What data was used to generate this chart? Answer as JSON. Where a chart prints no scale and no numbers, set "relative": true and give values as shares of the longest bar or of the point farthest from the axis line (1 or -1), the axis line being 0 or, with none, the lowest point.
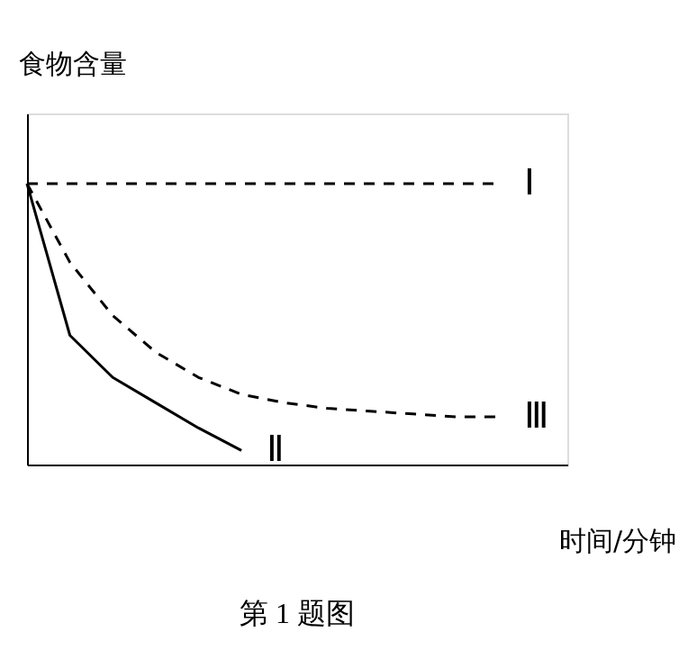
{
  "chart_data": {
    "type": "line",
    "relative": true,
    "ylabel": "食物含量",
    "xlabel": "时间/分钟",
    "annotations": [
      "第 1 题图"
    ],
    "tick_labels": false,
    "marker": "none",
    "categories": [
      null,
      null,
      null,
      null,
      null,
      null,
      null,
      null,
      null,
      null,
      null,
      null
    ],
    "series": [
      {
        "name": "Ⅰ",
        "color": "#000000",
        "line_style": "dashed",
        "values": [
          1,
          1,
          1,
          1,
          1,
          1,
          1,
          1,
          1,
          1,
          1,
          1
        ]
      },
      {
        "name": "Ⅱ",
        "color": "#000000",
        "line_style": "solid",
        "values": [
          1,
          0.46,
          0.31,
          0.22,
          0.13,
          0.05,
          null,
          null,
          null,
          null,
          null,
          null
        ]
      },
      {
        "name": "Ⅲ",
        "color": "#000000",
        "line_style": "dashed",
        "values": [
          1,
          0.72,
          0.53,
          0.4,
          0.31,
          0.25,
          0.22,
          0.2,
          0.19,
          0.18,
          0.17,
          0.17
        ]
      }
    ]
  }
}
